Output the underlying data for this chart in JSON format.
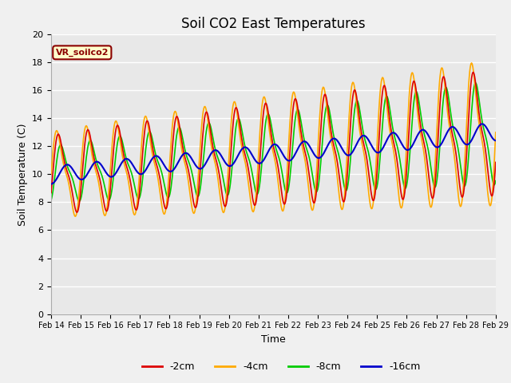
{
  "title": "Soil CO2 East Temperatures",
  "xlabel": "Time",
  "ylabel": "Soil Temperature (C)",
  "legend_label": "VR_soilco2",
  "series_labels": [
    "-2cm",
    "-4cm",
    "-8cm",
    "-16cm"
  ],
  "series_colors": [
    "#dd0000",
    "#ffaa00",
    "#00cc00",
    "#0000cc"
  ],
  "ylim": [
    0,
    20
  ],
  "yticks": [
    0,
    2,
    4,
    6,
    8,
    10,
    12,
    14,
    16,
    18,
    20
  ],
  "xtick_labels": [
    "Feb 14",
    "Feb 15",
    "Feb 16",
    "Feb 17",
    "Feb 18",
    "Feb 19",
    "Feb 20",
    "Feb 21",
    "Feb 22",
    "Feb 23",
    "Feb 24",
    "Feb 25",
    "Feb 26",
    "Feb 27",
    "Feb 28",
    "Feb 29"
  ],
  "plot_bg_color": "#e8e8e8",
  "fig_bg_color": "#f0f0f0",
  "grid_color": "#ffffff",
  "title_fontsize": 12,
  "axis_fontsize": 9,
  "tick_fontsize": 8
}
